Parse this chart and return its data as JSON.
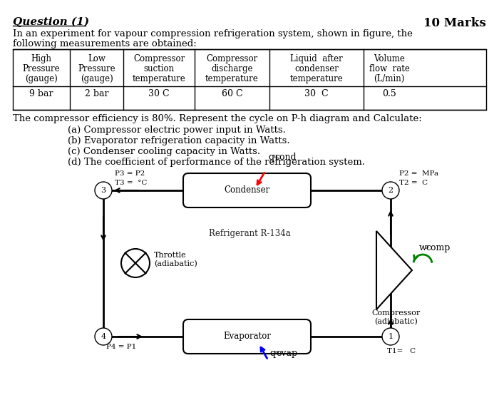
{
  "title_left": "Question (1)",
  "title_right": "10 Marks",
  "intro_line1": "In an experiment for vapour compression refrigeration system, shown in figure, the",
  "intro_line2": "following measurements are obtained:",
  "table_headers": [
    "High\nPressure\n(gauge)",
    "Low\nPressure\n(gauge)",
    "Compressor\nsuction\ntemperature",
    "Compressor\ndischarge\ntemperature",
    "Liquid  after\ncondenser\ntemperature",
    "Volume\nflow  rate\n(L/min)"
  ],
  "table_data": [
    "9 bar",
    "2 bar",
    "30 C",
    "60 C",
    "30  C",
    "0.5"
  ],
  "efficiency_text": "The compressor efficiency is 80%. Represent the cycle on P-h diagram and Calculate:",
  "parts": [
    "(a) Compressor electric power input in Watts.",
    "(b) Evaporator refrigeration capacity in Watts.",
    "(c) Condenser cooling capacity in Watts.",
    "(d) The coefficient of performance of the refrigeration system."
  ],
  "bg_color": "#ffffff",
  "text_color": "#000000",
  "diagram": {
    "condenser_label": "Condenser",
    "evaporator_label": "Evaporator",
    "refrigerant_label": "Refrigerant R-134a",
    "compressor_label": "Compressor\n(adiabatic)",
    "throttle_label": "Throttle\n(adiabatic)",
    "node1": "1",
    "node2": "2",
    "node3": "3",
    "node4": "4",
    "label_p3": "P3 = P2",
    "label_t3": "T3 =  °C",
    "label_p2": "P2 =  MPa",
    "label_t2": "T2 =  C",
    "label_p4": "P4 = P1",
    "label_t1": "T1=   C",
    "q_cond_sub": "cond",
    "q_evap_sub": "evap",
    "w_comp_sub": "comp"
  }
}
